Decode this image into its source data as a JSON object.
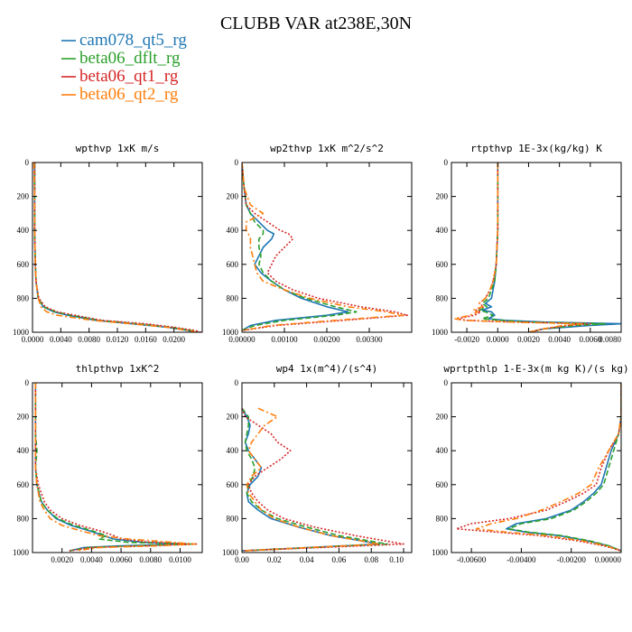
{
  "title": "CLUBB VAR at238E,30N",
  "colors": {
    "cam078_qt5_rg": "#1f77b4",
    "beta06_dflt_rg": "#2ca02c",
    "beta06_qt1_rg": "#d62728",
    "beta06_qt2_rg": "#ff7f0e"
  },
  "legend": [
    {
      "name": "cam078_qt5_rg",
      "dash": "solid"
    },
    {
      "name": "beta06_dflt_rg",
      "dash": "dashed"
    },
    {
      "name": "beta06_qt1_rg",
      "dash": "dotted"
    },
    {
      "name": "beta06_qt2_rg",
      "dash": "dashdot"
    }
  ],
  "chart_data": [
    {
      "type": "line",
      "title": "wpthvp  1xK m/s",
      "xlim": [
        0.0,
        0.024
      ],
      "ylim": [
        1000,
        0
      ],
      "xticks": [
        "0.0000",
        "0.0040",
        "0.0080",
        "0.0120",
        "0.0160",
        "0.0200"
      ],
      "xtick_values": [
        0.0,
        0.004,
        0.008,
        0.012,
        0.016,
        0.02
      ],
      "yticks": [
        "0",
        "200",
        "400",
        "600",
        "800",
        "1000"
      ],
      "ytick_values": [
        0,
        200,
        400,
        600,
        800,
        1000
      ],
      "y": [
        0,
        200,
        400,
        600,
        700,
        800,
        850,
        880,
        900,
        930,
        950,
        970,
        990,
        1000
      ],
      "series": [
        {
          "name": "cam078_qt5_rg",
          "values": [
            0.0003,
            0.0003,
            0.0003,
            0.0004,
            0.0005,
            0.0008,
            0.0015,
            0.003,
            0.005,
            0.009,
            0.014,
            0.019,
            0.022,
            0.023
          ]
        },
        {
          "name": "beta06_dflt_rg",
          "values": [
            0.0003,
            0.0003,
            0.0003,
            0.0004,
            0.0005,
            0.0008,
            0.0016,
            0.0032,
            0.0055,
            0.0095,
            0.015,
            0.0195,
            0.0225,
            0.0235
          ]
        },
        {
          "name": "beta06_qt1_rg",
          "values": [
            0.0003,
            0.0003,
            0.0003,
            0.0004,
            0.0005,
            0.0009,
            0.0018,
            0.0035,
            0.006,
            0.0098,
            0.016,
            0.02,
            0.023,
            0.0238
          ]
        },
        {
          "name": "beta06_qt2_rg",
          "values": [
            0.0002,
            0.0003,
            0.0003,
            0.0004,
            0.0005,
            0.0008,
            0.0012,
            0.002,
            0.0035,
            0.0085,
            0.014,
            0.019,
            0.022,
            0.0232
          ]
        }
      ]
    },
    {
      "type": "line",
      "title": "wp2thvp  1xK m^2/s^2",
      "xlim": [
        0.0,
        0.004
      ],
      "ylim": [
        1000,
        0
      ],
      "xticks": [
        "0.00000",
        "0.00100",
        "0.00200",
        "0.00300"
      ],
      "xtick_values": [
        0.0,
        0.001,
        0.002,
        0.003
      ],
      "yticks": [
        "0",
        "200",
        "400",
        "600",
        "800",
        "1000"
      ],
      "ytick_values": [
        0,
        200,
        400,
        600,
        800,
        1000
      ],
      "y": [
        0,
        150,
        250,
        300,
        350,
        400,
        420,
        450,
        500,
        550,
        600,
        650,
        700,
        750,
        800,
        850,
        880,
        900,
        930,
        960,
        990
      ],
      "series": [
        {
          "name": "cam078_qt5_rg",
          "values": [
            0.0,
            5e-05,
            0.0001,
            0.0002,
            0.0004,
            0.0006,
            0.00075,
            0.0007,
            0.0005,
            0.0004,
            0.0003,
            0.00045,
            0.0007,
            0.001,
            0.0014,
            0.002,
            0.0025,
            0.002,
            0.0008,
            0.0002,
            0.0
          ]
        },
        {
          "name": "beta06_dflt_rg",
          "values": [
            0.0,
            5e-05,
            0.0001,
            0.0002,
            0.0003,
            0.0005,
            0.0005,
            0.0004,
            0.0004,
            0.00045,
            0.0004,
            0.0005,
            0.0007,
            0.001,
            0.0015,
            0.0022,
            0.0027,
            0.0022,
            0.001,
            0.0003,
            0.0
          ]
        },
        {
          "name": "beta06_qt1_rg",
          "values": [
            0.0,
            5e-05,
            0.0001,
            0.0003,
            0.0006,
            0.0009,
            0.0011,
            0.0012,
            0.001,
            0.0008,
            0.0007,
            0.0006,
            0.0008,
            0.0012,
            0.0018,
            0.0028,
            0.0036,
            0.0039,
            0.0024,
            0.0008,
            0.0
          ]
        },
        {
          "name": "beta06_qt2_rg",
          "values": [
            0.0,
            5e-05,
            0.0002,
            0.0005,
            0.0001,
            0.0001,
            0.00015,
            0.0002,
            0.0002,
            0.00025,
            0.0003,
            0.00035,
            0.0005,
            0.001,
            0.0016,
            0.0025,
            0.0034,
            0.0038,
            0.0022,
            0.0007,
            0.0
          ]
        }
      ]
    },
    {
      "type": "line",
      "title": "rtpthvp  1E-3x(kg/kg) K",
      "xlim": [
        -0.003,
        0.008
      ],
      "ylim": [
        1000,
        0
      ],
      "xticks": [
        "-0.0020",
        "0.0000",
        "0.0020",
        "0.0040",
        "0.0060",
        "0.0080"
      ],
      "xtick_values": [
        -0.002,
        0.0,
        0.002,
        0.004,
        0.006,
        0.008
      ],
      "yticks": [
        "0",
        "200",
        "400",
        "600",
        "800",
        "1000"
      ],
      "ytick_values": [
        0,
        200,
        400,
        600,
        800,
        1000
      ],
      "y": [
        0,
        200,
        400,
        600,
        700,
        750,
        800,
        830,
        850,
        870,
        880,
        900,
        920,
        930,
        940,
        950,
        960,
        980,
        1000
      ],
      "series": [
        {
          "name": "cam078_qt5_rg",
          "values": [
            0.0,
            0.0,
            0.0,
            -0.0001,
            -0.0002,
            -0.0003,
            -0.0004,
            -0.0008,
            -0.0004,
            -0.001,
            -0.0004,
            -0.0002,
            -0.0006,
            0.0005,
            0.003,
            0.008,
            0.006,
            0.003,
            0.002
          ]
        },
        {
          "name": "beta06_dflt_rg",
          "values": [
            0.0,
            0.0,
            0.0,
            -0.0001,
            -0.0002,
            -0.0004,
            -0.0006,
            -0.001,
            -0.0007,
            -0.0012,
            -0.0008,
            -0.0003,
            -0.001,
            0.0002,
            0.002,
            0.007,
            0.005,
            0.003,
            0.002
          ]
        },
        {
          "name": "beta06_qt1_rg",
          "values": [
            0.0,
            0.0,
            0.0,
            -0.0001,
            -0.0003,
            -0.0005,
            -0.0008,
            -0.0012,
            -0.0009,
            -0.0014,
            -0.0011,
            -0.0015,
            -0.0026,
            -0.002,
            0.001,
            0.006,
            0.0045,
            0.003,
            0.002
          ]
        },
        {
          "name": "beta06_qt2_rg",
          "values": [
            0.0,
            0.0,
            0.0,
            -0.0001,
            -0.0003,
            -0.0005,
            -0.0008,
            -0.0012,
            -0.001,
            -0.0016,
            -0.0013,
            -0.0018,
            -0.0028,
            -0.0022,
            0.0008,
            0.0055,
            0.0042,
            0.003,
            0.002
          ]
        }
      ]
    },
    {
      "type": "line",
      "title": "thlpthvp  1xK^2",
      "xlim": [
        0.0,
        0.0115
      ],
      "ylim": [
        1000,
        0
      ],
      "xticks": [
        "0.0020",
        "0.0040",
        "0.0060",
        "0.0080",
        "0.0100"
      ],
      "xtick_values": [
        0.002,
        0.004,
        0.006,
        0.008,
        0.01
      ],
      "yticks": [
        "0",
        "200",
        "400",
        "600",
        "800",
        "1000"
      ],
      "ytick_values": [
        0,
        200,
        400,
        600,
        800,
        1000
      ],
      "y": [
        0,
        100,
        200,
        300,
        400,
        500,
        600,
        700,
        750,
        800,
        840,
        870,
        900,
        920,
        940,
        950,
        960,
        970,
        990
      ],
      "series": [
        {
          "name": "cam078_qt5_rg",
          "values": [
            0.0002,
            0.0002,
            0.0002,
            0.0002,
            0.0002,
            0.0002,
            0.0003,
            0.0006,
            0.001,
            0.0016,
            0.0026,
            0.0038,
            0.0048,
            0.0055,
            0.0075,
            0.0105,
            0.006,
            0.0035,
            0.0025
          ]
        },
        {
          "name": "beta06_dflt_rg",
          "values": [
            0.0002,
            0.0002,
            0.0002,
            0.0002,
            0.0003,
            0.0002,
            0.0003,
            0.0006,
            0.001,
            0.0017,
            0.0028,
            0.004,
            0.005,
            0.0045,
            0.0065,
            0.0108,
            0.007,
            0.0038,
            0.0025
          ]
        },
        {
          "name": "beta06_qt1_rg",
          "values": [
            0.0002,
            0.0002,
            0.0002,
            0.0002,
            0.0002,
            0.0002,
            0.0004,
            0.0008,
            0.0012,
            0.002,
            0.0032,
            0.0045,
            0.0055,
            0.006,
            0.008,
            0.0112,
            0.008,
            0.004,
            0.0025
          ]
        },
        {
          "name": "beta06_qt2_rg",
          "values": [
            0.0002,
            0.0002,
            0.0002,
            0.0002,
            0.0002,
            0.0002,
            0.0003,
            0.0005,
            0.0008,
            0.0012,
            0.002,
            0.0032,
            0.0045,
            0.0065,
            0.0095,
            0.011,
            0.0085,
            0.0045,
            0.003
          ]
        }
      ]
    },
    {
      "type": "line",
      "title": "wp4  1x(m^4)/(s^4)",
      "xlim": [
        0.0,
        0.105
      ],
      "ylim": [
        1000,
        0
      ],
      "xticks": [
        "0.00",
        "0.02",
        "0.04",
        "0.06",
        "0.08",
        "0.10"
      ],
      "xtick_values": [
        0.0,
        0.02,
        0.04,
        0.06,
        0.08,
        0.1
      ],
      "yticks": [
        "0",
        "200",
        "400",
        "600",
        "800",
        "1000"
      ],
      "ytick_values": [
        0,
        200,
        400,
        600,
        800,
        1000
      ],
      "y": [
        150,
        200,
        250,
        300,
        350,
        400,
        450,
        500,
        550,
        600,
        650,
        700,
        750,
        800,
        850,
        900,
        950,
        990
      ],
      "series": [
        {
          "name": "cam078_qt5_rg",
          "values": [
            0.0,
            0.003,
            0.005,
            0.004,
            0.002,
            0.004,
            0.008,
            0.012,
            0.01,
            0.005,
            0.003,
            0.004,
            0.01,
            0.018,
            0.035,
            0.055,
            0.085,
            0.0
          ]
        },
        {
          "name": "beta06_dflt_rg",
          "values": [
            0.0,
            0.004,
            0.004,
            0.003,
            0.002,
            0.003,
            0.006,
            0.008,
            0.007,
            0.004,
            0.003,
            0.006,
            0.012,
            0.022,
            0.04,
            0.06,
            0.09,
            0.0
          ]
        },
        {
          "name": "beta06_qt1_rg",
          "values": [
            0.0,
            0.002,
            0.01,
            0.018,
            0.022,
            0.03,
            0.024,
            0.016,
            0.008,
            0.004,
            0.006,
            0.01,
            0.016,
            0.026,
            0.045,
            0.07,
            0.1,
            0.0
          ]
        },
        {
          "name": "beta06_qt2_rg",
          "values": [
            0.01,
            0.022,
            0.014,
            0.01,
            0.006,
            0.004,
            0.008,
            0.012,
            0.006,
            0.003,
            0.004,
            0.008,
            0.012,
            0.02,
            0.035,
            0.055,
            0.085,
            0.0
          ]
        }
      ]
    },
    {
      "type": "line",
      "title": "wprtpthlp  1-E-3x(m kg K)/(s kg)",
      "xlim": [
        -0.0068,
        0.0
      ],
      "ylim": [
        1000,
        0
      ],
      "xticks": [
        "-0.00600",
        "-0.00400",
        "-0.00200",
        "0.00000"
      ],
      "xtick_values": [
        -0.006,
        -0.004,
        -0.002,
        0.0
      ],
      "yticks": [
        "0",
        "200",
        "400",
        "600",
        "800",
        "1000"
      ],
      "ytick_values": [
        0,
        200,
        400,
        600,
        800,
        1000
      ],
      "y": [
        0,
        200,
        300,
        400,
        500,
        600,
        650,
        700,
        750,
        800,
        830,
        860,
        880,
        900,
        930,
        960,
        990
      ],
      "series": [
        {
          "name": "cam078_qt5_rg",
          "values": [
            0.0,
            0.0,
            -0.0001,
            -0.0004,
            -0.0006,
            -0.0008,
            -0.0011,
            -0.0015,
            -0.002,
            -0.003,
            -0.0042,
            -0.0046,
            -0.0038,
            -0.0025,
            -0.0014,
            -0.0005,
            0.0
          ]
        },
        {
          "name": "beta06_dflt_rg",
          "values": [
            0.0,
            0.0,
            -0.0001,
            -0.0003,
            -0.0005,
            -0.0007,
            -0.001,
            -0.0014,
            -0.0019,
            -0.0028,
            -0.004,
            -0.0045,
            -0.0037,
            -0.0024,
            -0.0013,
            -0.0005,
            0.0
          ]
        },
        {
          "name": "beta06_qt1_rg",
          "values": [
            0.0,
            0.0,
            -0.0001,
            -0.0005,
            -0.0008,
            -0.001,
            -0.0015,
            -0.0022,
            -0.003,
            -0.0045,
            -0.006,
            -0.0066,
            -0.005,
            -0.0033,
            -0.0018,
            -0.0007,
            0.0
          ]
        },
        {
          "name": "beta06_qt2_rg",
          "values": [
            0.0,
            0.0,
            -0.0001,
            -0.0005,
            -0.0009,
            -0.0012,
            -0.0017,
            -0.0024,
            -0.0032,
            -0.0042,
            -0.0052,
            -0.0058,
            -0.0046,
            -0.003,
            -0.0016,
            -0.0006,
            0.0
          ]
        }
      ]
    }
  ]
}
